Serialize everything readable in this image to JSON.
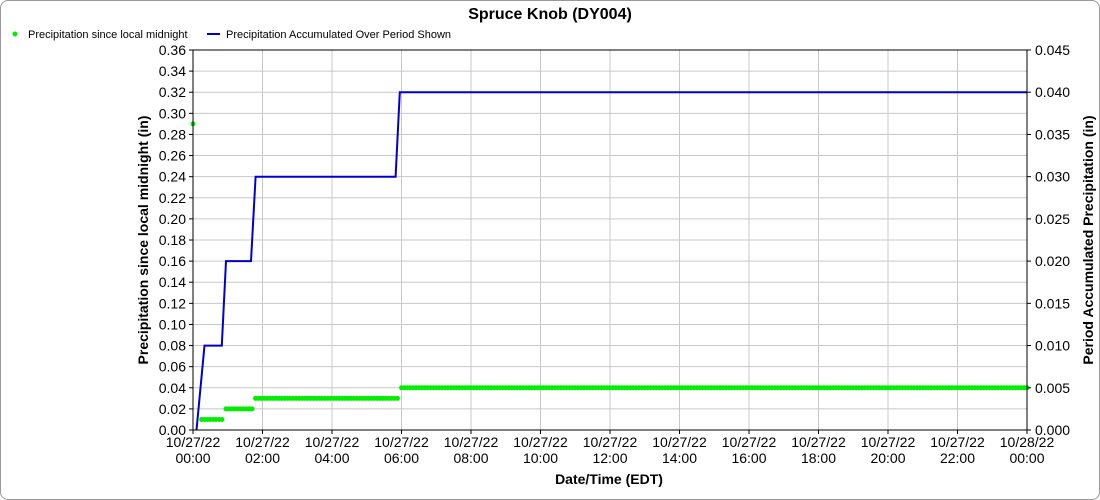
{
  "chart_data": {
    "type": "line",
    "title": "Spruce Knob (DY004)",
    "xlabel": "Date/Time (EDT)",
    "ylabel_left": "Precipitation since local midnight (in)",
    "ylabel_right": "Period Accumulated Precipitation (in)",
    "x_range_hours": [
      0,
      24
    ],
    "x_ticks": [
      {
        "h": 0,
        "date": "10/27/22",
        "time": "00:00"
      },
      {
        "h": 2,
        "date": "10/27/22",
        "time": "02:00"
      },
      {
        "h": 4,
        "date": "10/27/22",
        "time": "04:00"
      },
      {
        "h": 6,
        "date": "10/27/22",
        "time": "06:00"
      },
      {
        "h": 8,
        "date": "10/27/22",
        "time": "08:00"
      },
      {
        "h": 10,
        "date": "10/27/22",
        "time": "10:00"
      },
      {
        "h": 12,
        "date": "10/27/22",
        "time": "12:00"
      },
      {
        "h": 14,
        "date": "10/27/22",
        "time": "14:00"
      },
      {
        "h": 16,
        "date": "10/27/22",
        "time": "16:00"
      },
      {
        "h": 18,
        "date": "10/27/22",
        "time": "18:00"
      },
      {
        "h": 20,
        "date": "10/27/22",
        "time": "20:00"
      },
      {
        "h": 22,
        "date": "10/27/22",
        "time": "22:00"
      },
      {
        "h": 24,
        "date": "10/28/22",
        "time": "00:00"
      }
    ],
    "ylim_left": [
      0,
      0.36
    ],
    "yticks_left": [
      "0.00",
      "0.02",
      "0.04",
      "0.06",
      "0.08",
      "0.10",
      "0.12",
      "0.14",
      "0.16",
      "0.18",
      "0.20",
      "0.22",
      "0.24",
      "0.26",
      "0.28",
      "0.30",
      "0.32",
      "0.34",
      "0.36"
    ],
    "ylim_right": [
      0,
      0.045
    ],
    "yticks_right": [
      "0.000",
      "0.005",
      "0.010",
      "0.015",
      "0.020",
      "0.025",
      "0.030",
      "0.035",
      "0.040",
      "0.045"
    ],
    "grid": true,
    "legend_position": "top-left",
    "series": [
      {
        "name": "Precipitation since local midnight",
        "axis": "left",
        "style": "dots",
        "color": "#00ee00",
        "interval_minutes": 5,
        "initial_point": {
          "h": 0,
          "value": 0.29
        },
        "segments": [
          {
            "from_h": 0.25,
            "to_h": 0.9,
            "value": 0.01
          },
          {
            "from_h": 0.95,
            "to_h": 1.75,
            "value": 0.02
          },
          {
            "from_h": 1.8,
            "to_h": 5.9,
            "value": 0.03
          },
          {
            "from_h": 6.0,
            "to_h": 24.0,
            "value": 0.04
          }
        ]
      },
      {
        "name": "Precipitation Accumulated Over Period Shown",
        "axis": "right",
        "style": "line",
        "color": "#0000cc",
        "points": [
          [
            0.1,
            0.0
          ],
          [
            0.33,
            0.01
          ],
          [
            0.83,
            0.01
          ],
          [
            0.95,
            0.02
          ],
          [
            1.67,
            0.02
          ],
          [
            1.8,
            0.03
          ],
          [
            5.83,
            0.03
          ],
          [
            5.95,
            0.04
          ],
          [
            24.0,
            0.04
          ]
        ]
      }
    ]
  }
}
